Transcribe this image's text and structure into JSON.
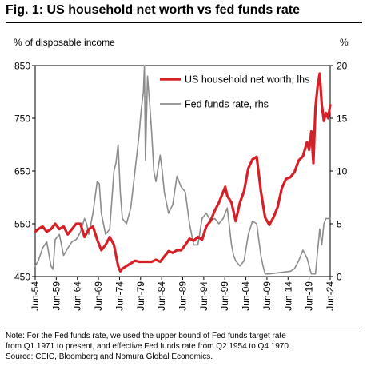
{
  "figure": {
    "title": "Fig. 1: US household net worth vs fed funds rate",
    "left_axis_label": "% of disposable income",
    "right_axis_label": "%",
    "note": "Note: For the Fed funds rate, we used the upper bound of Fed funds target rate from Q1 1971 to present, and effective Fed funds rate from Q2 1954 to Q4 1970.",
    "note_line1": "Note: For the Fed funds rate, we used the upper bound of Fed funds target rate",
    "note_line2": "from Q1 1971 to present, and effective Fed funds rate from Q2 1954 to Q4 1970.",
    "source": "Source: CEIC, Bloomberg and Nomura Global Economics."
  },
  "chart_data": {
    "type": "line",
    "title": "Fig. 1: US household net worth vs fed funds rate",
    "ylabel": "% of disposable income",
    "y2label": "%",
    "xlim": [
      1954.25,
      2024.5
    ],
    "ylim": [
      450,
      850
    ],
    "y2lim": [
      0,
      20
    ],
    "x_ticks": [
      "Jun-54",
      "Jun-59",
      "Jun-64",
      "Jun-69",
      "Jun-74",
      "Jun-79",
      "Jun-84",
      "Jun-89",
      "Jun-94",
      "Jun-99",
      "Jun-04",
      "Jun-09",
      "Jun-14",
      "Jun-19",
      "Jun-24"
    ],
    "y_ticks": [
      450,
      550,
      650,
      750,
      850
    ],
    "y2_ticks": [
      0,
      5,
      10,
      15,
      20
    ],
    "grid": false,
    "legend": "top-right",
    "series": [
      {
        "name": "US household net worth, lhs",
        "axis": "left",
        "color": "#d62027",
        "x": [
          1954.25,
          1955,
          1956,
          1957,
          1958,
          1959,
          1960,
          1961,
          1962,
          1963,
          1964,
          1965,
          1966,
          1967,
          1968,
          1969,
          1970,
          1971,
          1972,
          1973,
          1974,
          1974.5,
          1975,
          1976,
          1977,
          1978,
          1979,
          1980,
          1981,
          1982,
          1983,
          1984,
          1985,
          1986,
          1987,
          1988,
          1989,
          1990,
          1991,
          1992,
          1993,
          1994,
          1995,
          1996,
          1997,
          1998,
          1999,
          1999.5,
          2000,
          2001,
          2002,
          2003,
          2004,
          2005,
          2006,
          2007,
          2008,
          2009,
          2010,
          2011,
          2012,
          2013,
          2014,
          2015,
          2016,
          2017,
          2018,
          2019,
          2019.5,
          2020,
          2020.5,
          2021,
          2021.5,
          2022,
          2022.5,
          2023,
          2023.5,
          2024,
          2024.5
        ],
        "values": [
          535,
          540,
          545,
          535,
          540,
          550,
          540,
          545,
          530,
          540,
          550,
          550,
          525,
          540,
          545,
          520,
          500,
          510,
          525,
          510,
          470,
          460,
          465,
          470,
          475,
          480,
          478,
          478,
          478,
          478,
          482,
          478,
          488,
          498,
          495,
          500,
          500,
          510,
          522,
          518,
          525,
          520,
          545,
          555,
          575,
          590,
          610,
          620,
          603,
          590,
          555,
          590,
          612,
          655,
          672,
          677,
          612,
          562,
          548,
          562,
          582,
          618,
          635,
          638,
          648,
          670,
          678,
          705,
          690,
          725,
          665,
          770,
          810,
          835,
          775,
          745,
          760,
          750,
          775
        ]
      },
      {
        "name": "Fed funds rate, rhs",
        "axis": "right",
        "color": "#8c8c8c",
        "x": [
          1954.25,
          1955,
          1956,
          1957,
          1958,
          1958.5,
          1959,
          1960,
          1961,
          1962,
          1963,
          1964,
          1965,
          1966,
          1966.5,
          1967,
          1968,
          1969,
          1969.5,
          1970,
          1971,
          1972,
          1973,
          1973.5,
          1974,
          1974.5,
          1975,
          1976,
          1977,
          1978,
          1979,
          1979.5,
          1980,
          1980.25,
          1980.5,
          1981,
          1981.5,
          1982,
          1982.5,
          1983,
          1984,
          1984.5,
          1985,
          1986,
          1987,
          1988,
          1989,
          1990,
          1991,
          1992,
          1993,
          1994,
          1995,
          1996,
          1997,
          1998,
          1999,
          2000,
          2001,
          2001.5,
          2002,
          2003,
          2004,
          2005,
          2006,
          2007,
          2008,
          2008.5,
          2009,
          2010,
          2015,
          2016,
          2017,
          2018,
          2019,
          2019.5,
          2020,
          2021,
          2022,
          2022.5,
          2023,
          2023.5,
          2024,
          2024.5
        ],
        "values": [
          1.0,
          1.5,
          2.7,
          3.3,
          1.0,
          0.7,
          3.5,
          4.0,
          2.0,
          2.7,
          3.3,
          3.5,
          4.2,
          5.5,
          5.0,
          4.0,
          6.0,
          9.0,
          8.8,
          6.0,
          4.0,
          4.5,
          10.0,
          10.8,
          12.5,
          8.0,
          5.5,
          5.0,
          6.5,
          10.0,
          13.5,
          15.8,
          17.5,
          20.0,
          11.0,
          19.0,
          16.5,
          13.5,
          10.0,
          9.0,
          11.5,
          10.0,
          8.0,
          6.0,
          6.8,
          9.5,
          8.5,
          8.0,
          5.0,
          3.0,
          3.0,
          5.5,
          6.0,
          5.3,
          5.5,
          5.0,
          5.5,
          6.5,
          3.0,
          2.0,
          1.5,
          1.0,
          1.5,
          4.0,
          5.25,
          5.0,
          2.0,
          1.0,
          0.25,
          0.25,
          0.5,
          0.75,
          1.5,
          2.5,
          1.75,
          1.0,
          0.25,
          0.25,
          4.5,
          3.0,
          5.0,
          5.5,
          5.5,
          5.5
        ]
      }
    ]
  }
}
